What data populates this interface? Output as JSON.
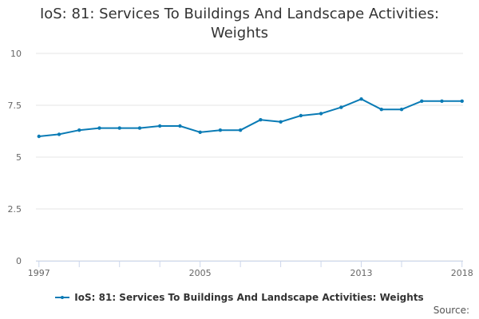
{
  "title": "IoS: 81: Services To Buildings And Landscape Activities: Weights",
  "legend_label": "IoS: 81: Services To Buildings And Landscape Activities: Weights",
  "credits": "Source:",
  "colors": {
    "series": "#0a7bb5",
    "grid": "#e6e6e6",
    "axis": "#ccd6eb"
  },
  "chart_data": {
    "type": "line",
    "title": "IoS: 81: Services To Buildings And Landscape Activities: Weights",
    "xlabel": "",
    "ylabel": "",
    "ylim": [
      0,
      10
    ],
    "y_ticks": [
      "0",
      "2.5",
      "5",
      "7.5",
      "10"
    ],
    "y_tick_values": [
      0,
      2.5,
      5,
      7.5,
      10
    ],
    "x_tick_labels": [
      "1997",
      "2005",
      "2013",
      "2018"
    ],
    "x_tick_years": [
      1997,
      2005,
      2013,
      2018
    ],
    "x_tick_marks": [
      1997,
      1999,
      2001,
      2003,
      2005,
      2007,
      2009,
      2011,
      2013,
      2015,
      2018
    ],
    "grid": true,
    "legend": "bottom-center",
    "series": [
      {
        "name": "IoS: 81: Services To Buildings And Landscape Activities: Weights",
        "x": [
          1997,
          1998,
          1999,
          2000,
          2001,
          2002,
          2003,
          2004,
          2005,
          2006,
          2007,
          2008,
          2009,
          2010,
          2011,
          2012,
          2013,
          2014,
          2015,
          2016,
          2017,
          2018
        ],
        "values": [
          6.0,
          6.1,
          6.3,
          6.4,
          6.4,
          6.4,
          6.5,
          6.5,
          6.2,
          6.3,
          6.3,
          6.8,
          6.7,
          7.0,
          7.1,
          7.4,
          7.8,
          7.3,
          7.3,
          7.7,
          7.7,
          7.7
        ]
      }
    ]
  }
}
